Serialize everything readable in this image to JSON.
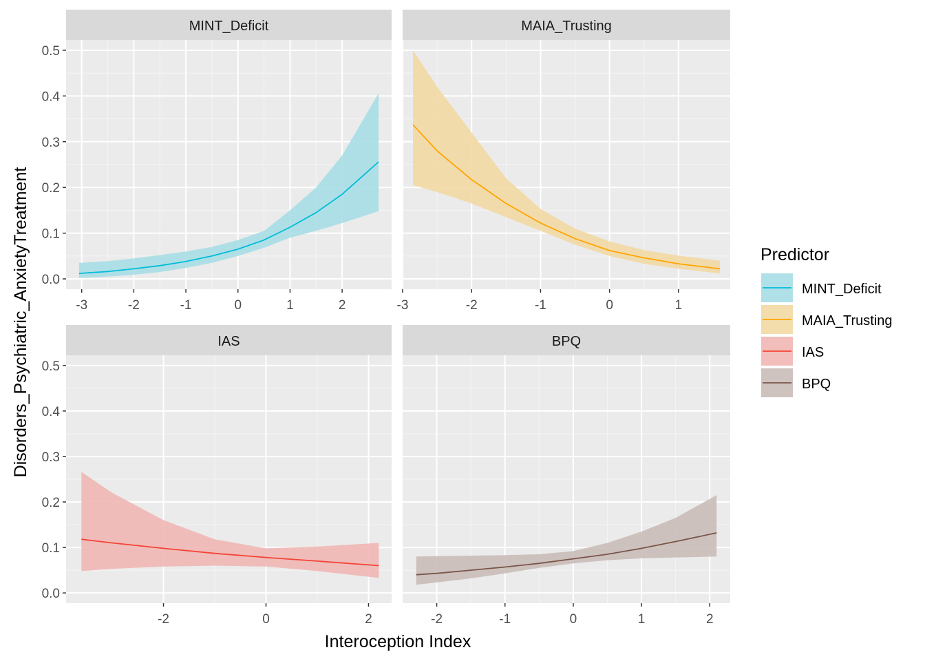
{
  "chart_data": {
    "type": "line",
    "xlabel": "Interoception Index",
    "ylabel": "Disorders_Psychiatric_AnxietyTreatment",
    "ylim": [
      0,
      0.5
    ],
    "y_ticks": [
      "0.0",
      "0.1",
      "0.2",
      "0.3",
      "0.4",
      "0.5"
    ],
    "grid": true,
    "legend": {
      "title": "Predictor",
      "position": "right",
      "entries": [
        "MINT_Deficit",
        "MAIA_Trusting",
        "IAS",
        "BPQ"
      ]
    },
    "panels": [
      {
        "name": "MINT_Deficit",
        "color": "#00BCD8",
        "fill": "#A7DEE6",
        "xlim": [
          -3.3,
          2.95
        ],
        "x_ticks": [
          -3,
          -2,
          -1,
          0,
          1,
          2
        ],
        "x": [
          -3.05,
          -2.5,
          -2.0,
          -1.5,
          -1.0,
          -0.5,
          0.0,
          0.5,
          1.0,
          1.5,
          2.0,
          2.7
        ],
        "y": [
          0.012,
          0.016,
          0.022,
          0.029,
          0.038,
          0.05,
          0.065,
          0.085,
          0.113,
          0.145,
          0.185,
          0.256
        ],
        "lower": [
          0.002,
          0.005,
          0.009,
          0.015,
          0.024,
          0.035,
          0.05,
          0.068,
          0.09,
          0.105,
          0.122,
          0.148
        ],
        "upper": [
          0.035,
          0.039,
          0.045,
          0.052,
          0.06,
          0.07,
          0.085,
          0.105,
          0.15,
          0.2,
          0.27,
          0.406
        ]
      },
      {
        "name": "MAIA_Trusting",
        "color": "#FFA500",
        "fill": "#F2D9A4",
        "xlim": [
          -3.0,
          1.75
        ],
        "x_ticks": [
          -3,
          -2,
          -1,
          0,
          1
        ],
        "x": [
          -2.85,
          -2.5,
          -2.0,
          -1.5,
          -1.0,
          -0.5,
          0.0,
          0.5,
          1.0,
          1.6
        ],
        "y": [
          0.337,
          0.28,
          0.217,
          0.165,
          0.122,
          0.088,
          0.062,
          0.046,
          0.033,
          0.022
        ],
        "lower": [
          0.205,
          0.19,
          0.165,
          0.135,
          0.105,
          0.075,
          0.05,
          0.033,
          0.022,
          0.012
        ],
        "upper": [
          0.5,
          0.42,
          0.32,
          0.22,
          0.153,
          0.11,
          0.082,
          0.063,
          0.051,
          0.04
        ]
      },
      {
        "name": "IAS",
        "color": "#F44336",
        "fill": "#EFB7B4",
        "xlim": [
          -3.9,
          2.45
        ],
        "x_ticks": [
          -2,
          0,
          2
        ],
        "x": [
          -3.6,
          -3.0,
          -2.0,
          -1.0,
          0.0,
          1.0,
          2.2
        ],
        "y": [
          0.118,
          0.11,
          0.098,
          0.087,
          0.078,
          0.07,
          0.06
        ],
        "lower": [
          0.048,
          0.053,
          0.058,
          0.06,
          0.058,
          0.048,
          0.033
        ],
        "upper": [
          0.266,
          0.22,
          0.16,
          0.118,
          0.098,
          0.102,
          0.11
        ]
      },
      {
        "name": "BPQ",
        "color": "#795548",
        "fill": "#CABDB8",
        "xlim": [
          -2.5,
          2.3
        ],
        "x_ticks": [
          -2,
          -1,
          0,
          1,
          2
        ],
        "x": [
          -2.3,
          -2.0,
          -1.5,
          -1.0,
          -0.5,
          0.0,
          0.5,
          1.0,
          1.5,
          2.1
        ],
        "y": [
          0.04,
          0.043,
          0.05,
          0.057,
          0.065,
          0.075,
          0.085,
          0.098,
          0.113,
          0.132
        ],
        "lower": [
          0.018,
          0.023,
          0.032,
          0.043,
          0.055,
          0.065,
          0.072,
          0.076,
          0.078,
          0.08
        ],
        "upper": [
          0.08,
          0.081,
          0.082,
          0.083,
          0.085,
          0.092,
          0.11,
          0.135,
          0.165,
          0.215
        ]
      }
    ]
  }
}
